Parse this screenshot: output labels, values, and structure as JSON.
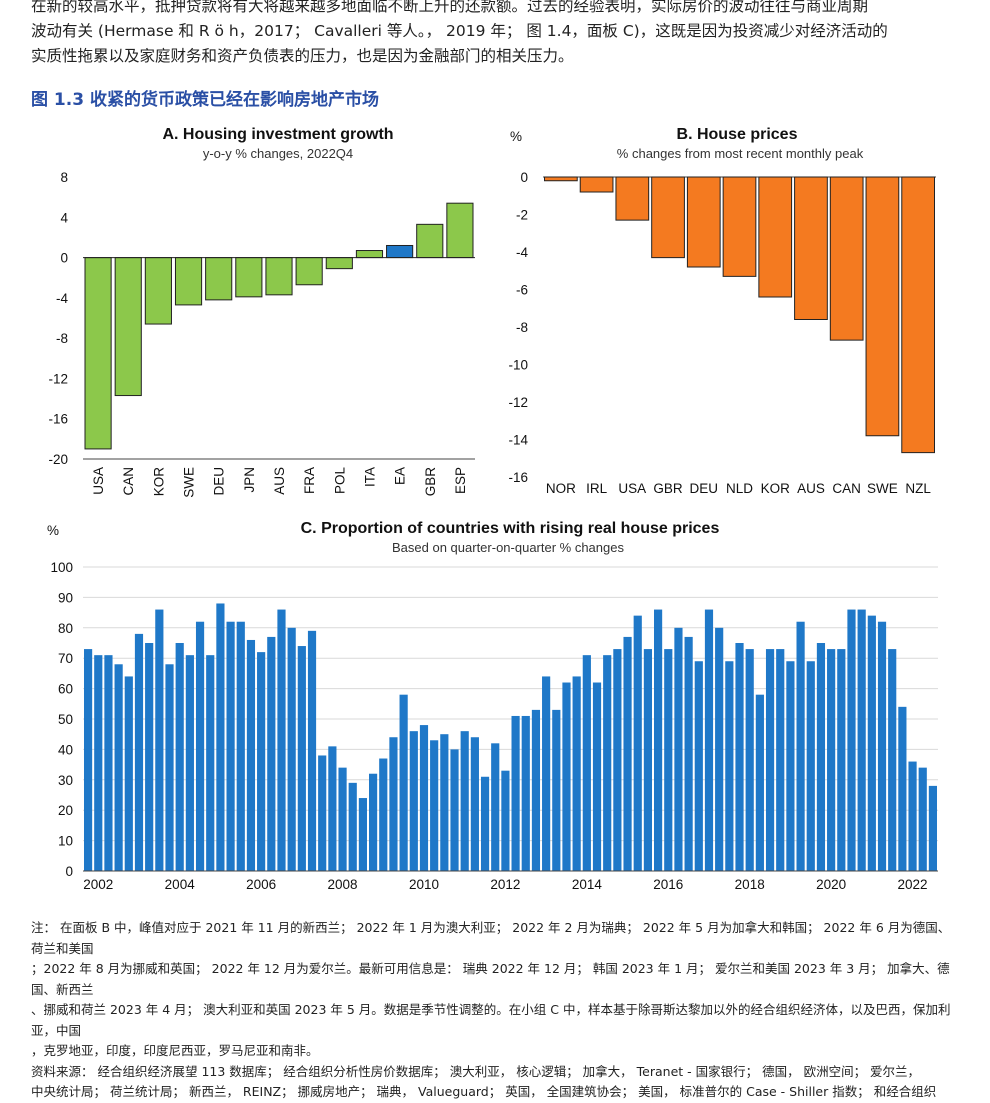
{
  "intro": {
    "line1": "在新的较高水平，抵押贷款将有大将越来越多地面临不断上升的还款额。过去的经验表明，实际房价的波动往往与商业周期",
    "line2": "波动有关 (Hermase 和 R ö h，2017； Cavalleri 等人。， 2019 年； 图 1.4，面板 C)，这既是因为投资减少对经济活动的",
    "line3": "实质性拖累以及家庭财务和资产负债表的压力，也是因为金融部门的相关压力。"
  },
  "figure": {
    "title": "图 1.3 收紧的货币政策已经在影响房地产市场"
  },
  "chart_data": [
    {
      "id": "A",
      "type": "bar",
      "title": "A. Housing investment growth",
      "subtitle": "y-o-y % changes, 2022Q4",
      "unit": "",
      "categories": [
        "USA",
        "CAN",
        "KOR",
        "SWE",
        "DEU",
        "JPN",
        "AUS",
        "FRA",
        "POL",
        "ITA",
        "EA",
        "GBR",
        "ESP"
      ],
      "values": [
        -19.0,
        -13.7,
        -6.6,
        -4.7,
        -4.2,
        -3.9,
        -3.7,
        -2.7,
        -1.1,
        0.7,
        1.2,
        3.3,
        5.4
      ],
      "highlight": "EA",
      "ylim": [
        -20,
        8
      ],
      "yticks": [
        8,
        4,
        0,
        -4,
        -8,
        -12,
        -16,
        -20
      ],
      "colors": {
        "bar": "#8cc84b",
        "highlight": "#1f78c8"
      }
    },
    {
      "id": "B",
      "type": "bar",
      "title": "B. House prices",
      "subtitle": "% changes from most recent monthly peak",
      "unit": "%",
      "categories": [
        "NOR",
        "IRL",
        "USA",
        "GBR",
        "DEU",
        "NLD",
        "KOR",
        "AUS",
        "CAN",
        "SWE",
        "NZL"
      ],
      "values": [
        -0.2,
        -0.8,
        -2.3,
        -4.3,
        -4.8,
        -5.3,
        -6.4,
        -7.6,
        -8.7,
        -13.8,
        -14.7
      ],
      "ylim": [
        -16,
        0
      ],
      "yticks": [
        0,
        -2,
        -4,
        -6,
        -8,
        -10,
        -12,
        -14,
        -16
      ],
      "colors": {
        "bar": "#f47a20"
      }
    },
    {
      "id": "C",
      "type": "bar",
      "title": "C. Proportion of countries with rising real house prices",
      "subtitle": "Based on quarter-on-quarter % changes",
      "unit": "%",
      "start": "2002Q1",
      "xtick_labels": [
        "2002",
        "2004",
        "2006",
        "2008",
        "2010",
        "2012",
        "2014",
        "2016",
        "2018",
        "2020",
        "2022"
      ],
      "values": [
        73,
        71,
        71,
        68,
        64,
        78,
        75,
        86,
        68,
        75,
        71,
        82,
        71,
        88,
        82,
        82,
        76,
        72,
        77,
        86,
        80,
        74,
        79,
        38,
        41,
        34,
        29,
        24,
        32,
        37,
        44,
        58,
        46,
        48,
        43,
        45,
        40,
        46,
        44,
        31,
        42,
        33,
        51,
        51,
        53,
        64,
        53,
        62,
        64,
        71,
        62,
        71,
        73,
        77,
        84,
        73,
        86,
        73,
        80,
        77,
        69,
        86,
        80,
        69,
        75,
        73,
        58,
        73,
        73,
        69,
        82,
        69,
        75,
        73,
        73,
        86,
        86,
        84,
        82,
        73,
        54,
        36,
        34,
        28
      ],
      "ylim": [
        0,
        100
      ],
      "yticks": [
        100,
        90,
        80,
        70,
        60,
        50,
        40,
        30,
        20,
        10,
        0
      ],
      "colors": {
        "bar": "#1f78c8"
      }
    }
  ],
  "notes": {
    "line1": "注： 在面板 B 中，峰值对应于 2021 年 11 月的新西兰； 2022 年 1 月为澳大利亚； 2022 年 2 月为瑞典； 2022 年 5 月为加拿大和韩国； 2022 年 6 月为德国、荷兰和美国",
    "line2": "；2022 年 8 月为挪威和英国； 2022 年 12 月为爱尔兰。最新可用信息是： 瑞典 2022 年 12 月； 韩国 2023 年 1 月； 爱尔兰和美国 2023 年 3 月； 加拿大、德国、新西兰",
    "line3": "、挪威和荷兰 2023 年 4 月； 澳大利亚和英国 2023 年 5 月。数据是季节性调整的。在小组 C 中，样本基于除哥斯达黎加以外的经合组织经济体，以及巴西，保加利亚，中国",
    "line4": "，克罗地亚，印度，印度尼西亚，罗马尼亚和南非。",
    "line5": "资料来源： 经合组织经济展望 113 数据库； 经合组织分析性房价数据库； 澳大利亚， 核心逻辑； 加拿大， Teranet - 国家银行； 德国， 欧洲空间； 爱尔兰，",
    "line6": "中央统计局； 荷兰统计局； 新西兰， REINZ； 挪威房地产； 瑞典， Valueguard； 英国， 全国建筑协会； 美国， 标准普尔的 Case - Shiller 指数； 和经合组织"
  }
}
